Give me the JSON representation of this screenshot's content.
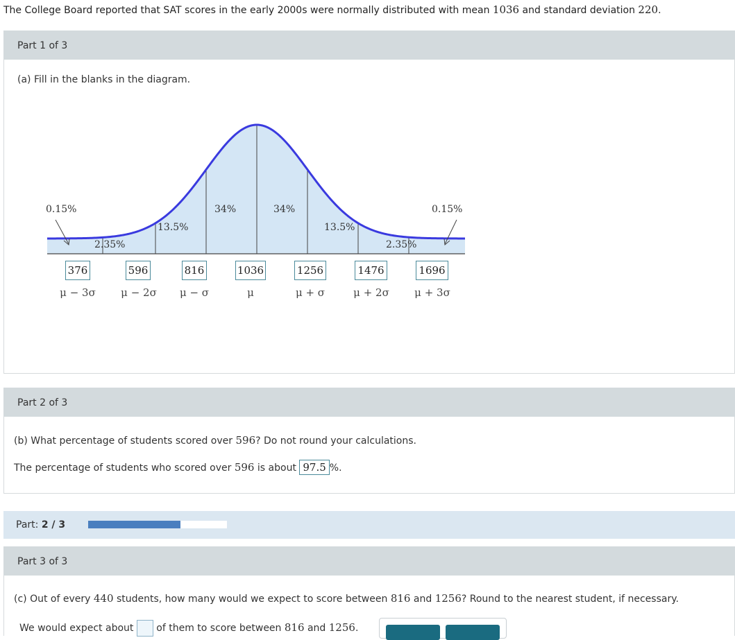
{
  "intro": {
    "text_before": "The College Board reported that SAT scores in the early 2000s were normally distributed with mean ",
    "mean": "1036",
    "text_middle": " and standard deviation ",
    "sd": "220",
    "text_end": "."
  },
  "part1": {
    "header": "Part 1 of 3",
    "prompt": "(a) Fill in the blanks in the diagram.",
    "diagram": {
      "percents": {
        "left_tail": "0.15%",
        "left_2sd": "2.35%",
        "left_1sd": "13.5%",
        "left_center": "34%",
        "right_center": "34%",
        "right_1sd": "13.5%",
        "right_2sd": "2.35%",
        "right_tail": "0.15%"
      },
      "values": [
        "376",
        "596",
        "816",
        "1036",
        "1256",
        "1476",
        "1696"
      ],
      "labels": [
        "μ − 3σ",
        "μ − 2σ",
        "μ − σ",
        "μ",
        "μ + σ",
        "μ + 2σ",
        "μ + 3σ"
      ],
      "colors": {
        "curve": "#3a3adf",
        "fill": "#d4e6f5",
        "lines": "#444444"
      }
    }
  },
  "part2": {
    "header": "Part 2 of 3",
    "prompt_before": "(b) What percentage of students scored over ",
    "prompt_num": "596",
    "prompt_after": "? Do not round your calculations.",
    "answer_before": "The percentage of students who scored over ",
    "answer_num": "596",
    "answer_middle": " is about ",
    "answer_value": "97.5",
    "answer_after": "%."
  },
  "progress": {
    "label": "Part: ",
    "value": "2 / 3",
    "fraction": 0.667,
    "color": "#4a7fbf"
  },
  "part3": {
    "header": "Part 3 of 3",
    "prompt_before": "(c) Out of every ",
    "n": "440",
    "prompt_middle": " students, how many would we expect to score between ",
    "low": "816",
    "prompt_and": " and ",
    "high": "1256",
    "prompt_after": "? Round to the nearest student, if necessary.",
    "answer_before": "We would expect about ",
    "answer_middle": " of them to score between ",
    "answer_low": "816",
    "answer_and": " and ",
    "answer_high": "1256",
    "answer_end": "."
  }
}
